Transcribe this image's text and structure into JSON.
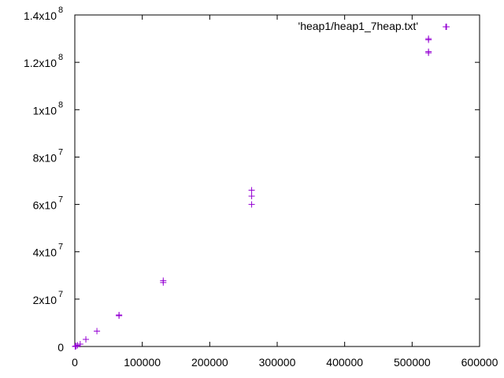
{
  "chart_data": {
    "type": "scatter",
    "title": "",
    "xlabel": "",
    "ylabel": "",
    "xlim": [
      0,
      600000
    ],
    "ylim": [
      0,
      140000000
    ],
    "x_ticks": [
      {
        "value": 0,
        "label": "0"
      },
      {
        "value": 100000,
        "label": "100000"
      },
      {
        "value": 200000,
        "label": "200000"
      },
      {
        "value": 300000,
        "label": "300000"
      },
      {
        "value": 400000,
        "label": "400000"
      },
      {
        "value": 500000,
        "label": "500000"
      },
      {
        "value": 600000,
        "label": "600000"
      }
    ],
    "y_ticks": [
      {
        "value": 0,
        "mantissa": "0",
        "exponent": ""
      },
      {
        "value": 20000000,
        "mantissa": "2x10",
        "exponent": "7"
      },
      {
        "value": 40000000,
        "mantissa": "4x10",
        "exponent": "7"
      },
      {
        "value": 60000000,
        "mantissa": "6x10",
        "exponent": "7"
      },
      {
        "value": 80000000,
        "mantissa": "8x10",
        "exponent": "7"
      },
      {
        "value": 100000000,
        "mantissa": "1x10",
        "exponent": "8"
      },
      {
        "value": 120000000,
        "mantissa": "1.2x10",
        "exponent": "8"
      },
      {
        "value": 140000000,
        "mantissa": "1.4x10",
        "exponent": "8"
      }
    ],
    "grid": false,
    "legend_position": "top-right",
    "marker": "+",
    "series": [
      {
        "name": "'heap1/heap1_7heap.txt'",
        "color": "#9400d3",
        "points": [
          [
            500,
            0
          ],
          [
            1000,
            100000
          ],
          [
            2000,
            200000
          ],
          [
            4000,
            500000
          ],
          [
            8000,
            1000000
          ],
          [
            16384,
            3000000
          ],
          [
            32768,
            6500000
          ],
          [
            65536,
            13000000
          ],
          [
            65536,
            13300000
          ],
          [
            131072,
            27000000
          ],
          [
            131072,
            27800000
          ],
          [
            262144,
            60000000
          ],
          [
            262144,
            63500000
          ],
          [
            262144,
            66000000
          ],
          [
            524288,
            124000000
          ],
          [
            524288,
            124500000
          ],
          [
            524288,
            129500000
          ],
          [
            524288,
            130000000
          ],
          [
            550000,
            135000000
          ]
        ]
      }
    ]
  }
}
